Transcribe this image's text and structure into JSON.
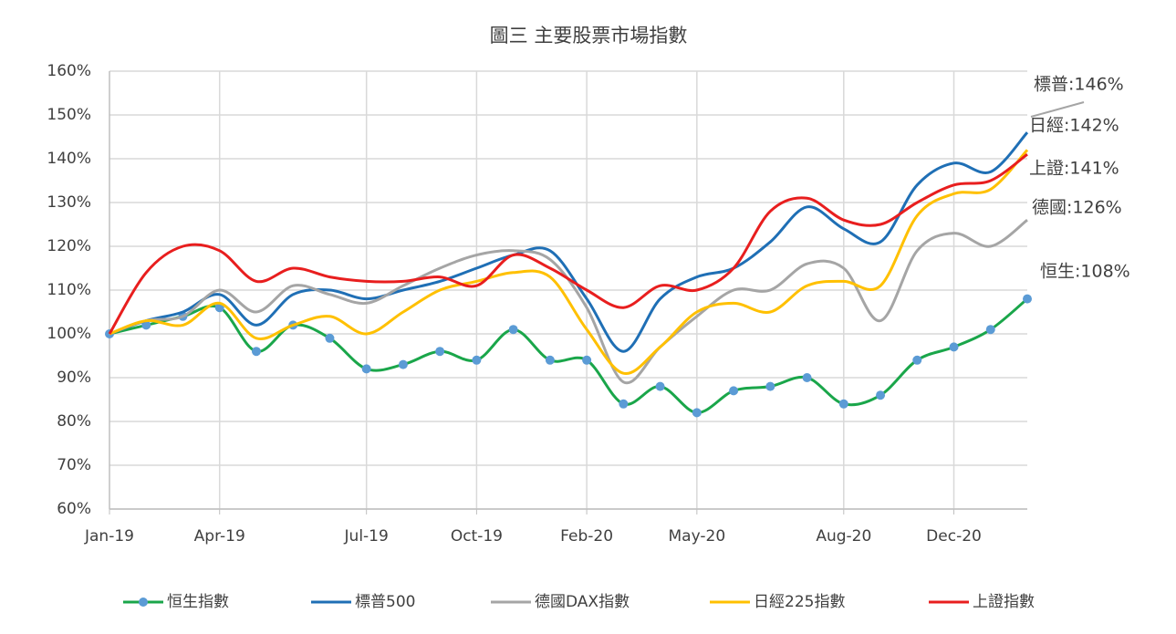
{
  "chart_data": {
    "type": "line",
    "title": "圖三 主要股票市場指數",
    "categories": [
      "Jan-19",
      null,
      null,
      "Apr-19",
      null,
      null,
      null,
      "Jul-19",
      null,
      null,
      "Oct-19",
      null,
      null,
      "Feb-20",
      null,
      null,
      "May-20",
      null,
      null,
      null,
      "Aug-20",
      null,
      null,
      "Dec-20",
      null,
      null
    ],
    "series": [
      {
        "name": "恒生指數",
        "color": "#1aa64a",
        "marker_color": "#5b9bd5",
        "values": [
          100,
          102,
          104,
          106,
          96,
          102,
          99,
          92,
          93,
          96,
          94,
          101,
          94,
          94,
          84,
          88,
          82,
          87,
          88,
          90,
          84,
          86,
          94,
          97,
          101,
          108
        ]
      },
      {
        "name": "標普500",
        "color": "#1f6fb5",
        "values": [
          100,
          103,
          105,
          109,
          102,
          109,
          110,
          108,
          110,
          112,
          115,
          118,
          119,
          108,
          96,
          108,
          113,
          115,
          121,
          129,
          124,
          121,
          134,
          139,
          137,
          146
        ]
      },
      {
        "name": "德國DAX指數",
        "color": "#a5a5a5",
        "values": [
          100,
          103,
          104,
          110,
          105,
          111,
          109,
          107,
          111,
          115,
          118,
          119,
          117,
          106,
          89,
          97,
          104,
          110,
          110,
          116,
          115,
          103,
          119,
          123,
          120,
          126
        ]
      },
      {
        "name": "日經225指數",
        "color": "#ffc000",
        "values": [
          100,
          103,
          102,
          107,
          99,
          102,
          104,
          100,
          105,
          110,
          112,
          114,
          113,
          101,
          91,
          97,
          105,
          107,
          105,
          111,
          112,
          111,
          127,
          132,
          133,
          142
        ]
      },
      {
        "name": "上證指數",
        "color": "#e81e1e",
        "values": [
          100,
          114,
          120,
          119,
          112,
          115,
          113,
          112,
          112,
          113,
          111,
          118,
          115,
          110,
          106,
          111,
          110,
          115,
          128,
          131,
          126,
          125,
          130,
          134,
          135,
          141
        ]
      }
    ],
    "ylim": [
      60,
      160
    ],
    "yticks": [
      {
        "value": 60,
        "label": "60%"
      },
      {
        "value": 70,
        "label": "70%"
      },
      {
        "value": 80,
        "label": "80%"
      },
      {
        "value": 90,
        "label": "90%"
      },
      {
        "value": 100,
        "label": "100%"
      },
      {
        "value": 110,
        "label": "110%"
      },
      {
        "value": 120,
        "label": "120%"
      },
      {
        "value": 130,
        "label": "130%"
      },
      {
        "value": 140,
        "label": "140%"
      },
      {
        "value": 150,
        "label": "150%"
      },
      {
        "value": 160,
        "label": "160%"
      }
    ],
    "grid": true,
    "legend": "bottom",
    "annotations": [
      "標普:146%",
      "日經:142%",
      "上證:141%",
      "德國:126%",
      "恒生:108%"
    ]
  }
}
